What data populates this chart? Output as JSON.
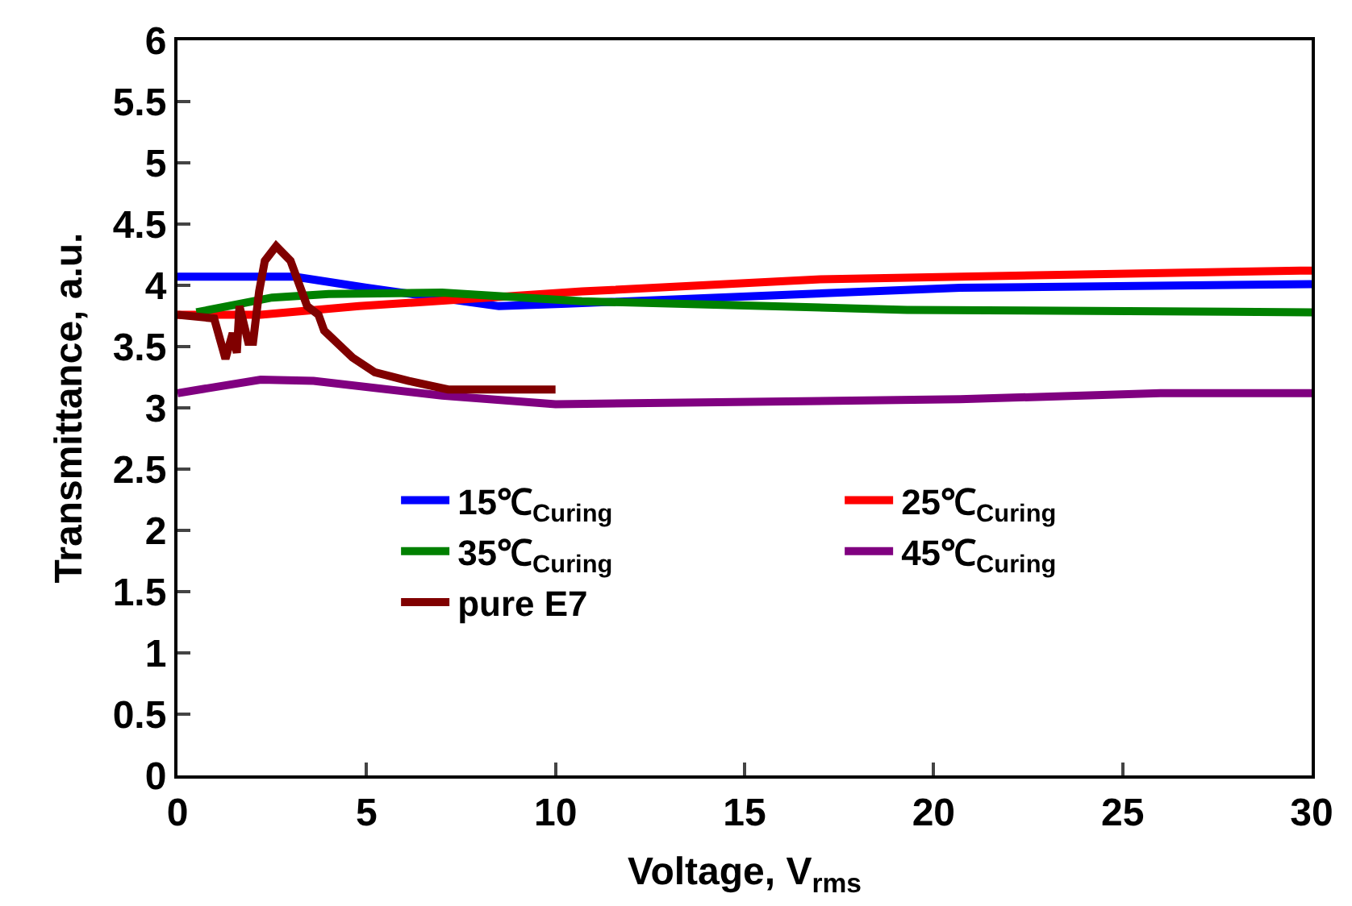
{
  "chart_data": {
    "type": "line",
    "xlabel": "Voltage, V$_{rms}$",
    "ylabel": "Transmittance, a.u.",
    "xlim": [
      0,
      30
    ],
    "xticks": [
      0,
      5,
      10,
      15,
      20,
      25,
      30
    ],
    "ylim": [
      0,
      6
    ],
    "yticks": [
      0,
      0.5,
      1,
      1.5,
      2,
      2.5,
      3,
      3.5,
      4,
      4.5,
      5,
      5.5,
      6
    ],
    "legend": "bottom left",
    "marker": "none",
    "line_style": "solid",
    "series": [
      {
        "name": "15℃$_{Curing}$",
        "color": "#0000ff",
        "x": [
          0,
          3.1,
          5,
          8.5,
          10.3,
          20.7,
          30
        ],
        "values": [
          4.07,
          4.07,
          3.98,
          3.83,
          3.85,
          3.98,
          4.01
        ]
      },
      {
        "name": "25℃$_{Curing}$",
        "color": "#ff0000",
        "x": [
          0,
          2.2,
          4.8,
          10.7,
          17,
          29.7,
          30
        ],
        "values": [
          3.76,
          3.76,
          3.83,
          3.95,
          4.05,
          4.12,
          4.12
        ]
      },
      {
        "name": "35℃$_{Curing}$",
        "color": "#008000",
        "x": [
          0.5,
          2.5,
          4,
          7,
          10.7,
          19.3,
          30
        ],
        "values": [
          3.78,
          3.9,
          3.93,
          3.94,
          3.87,
          3.8,
          3.78
        ]
      },
      {
        "name": "45℃$_{Curing}$",
        "color": "#800080",
        "x": [
          0,
          2.2,
          3.6,
          7,
          10,
          20.7,
          26,
          30
        ],
        "values": [
          3.12,
          3.23,
          3.22,
          3.1,
          3.03,
          3.07,
          3.12,
          3.12
        ]
      },
      {
        "name": "pure E7",
        "color": "#800000",
        "x": [
          0,
          0.97,
          1.27,
          1.46,
          1.57,
          1.64,
          1.87,
          2.0,
          2.16,
          2.31,
          2.61,
          2.99,
          3.43,
          3.73,
          3.88,
          4.63,
          5.22,
          6.12,
          7.16,
          10
        ],
        "values": [
          3.76,
          3.73,
          3.4,
          3.61,
          3.45,
          3.83,
          3.54,
          3.54,
          3.95,
          4.2,
          4.32,
          4.2,
          3.83,
          3.76,
          3.63,
          3.41,
          3.29,
          3.22,
          3.15,
          3.15
        ]
      }
    ]
  }
}
